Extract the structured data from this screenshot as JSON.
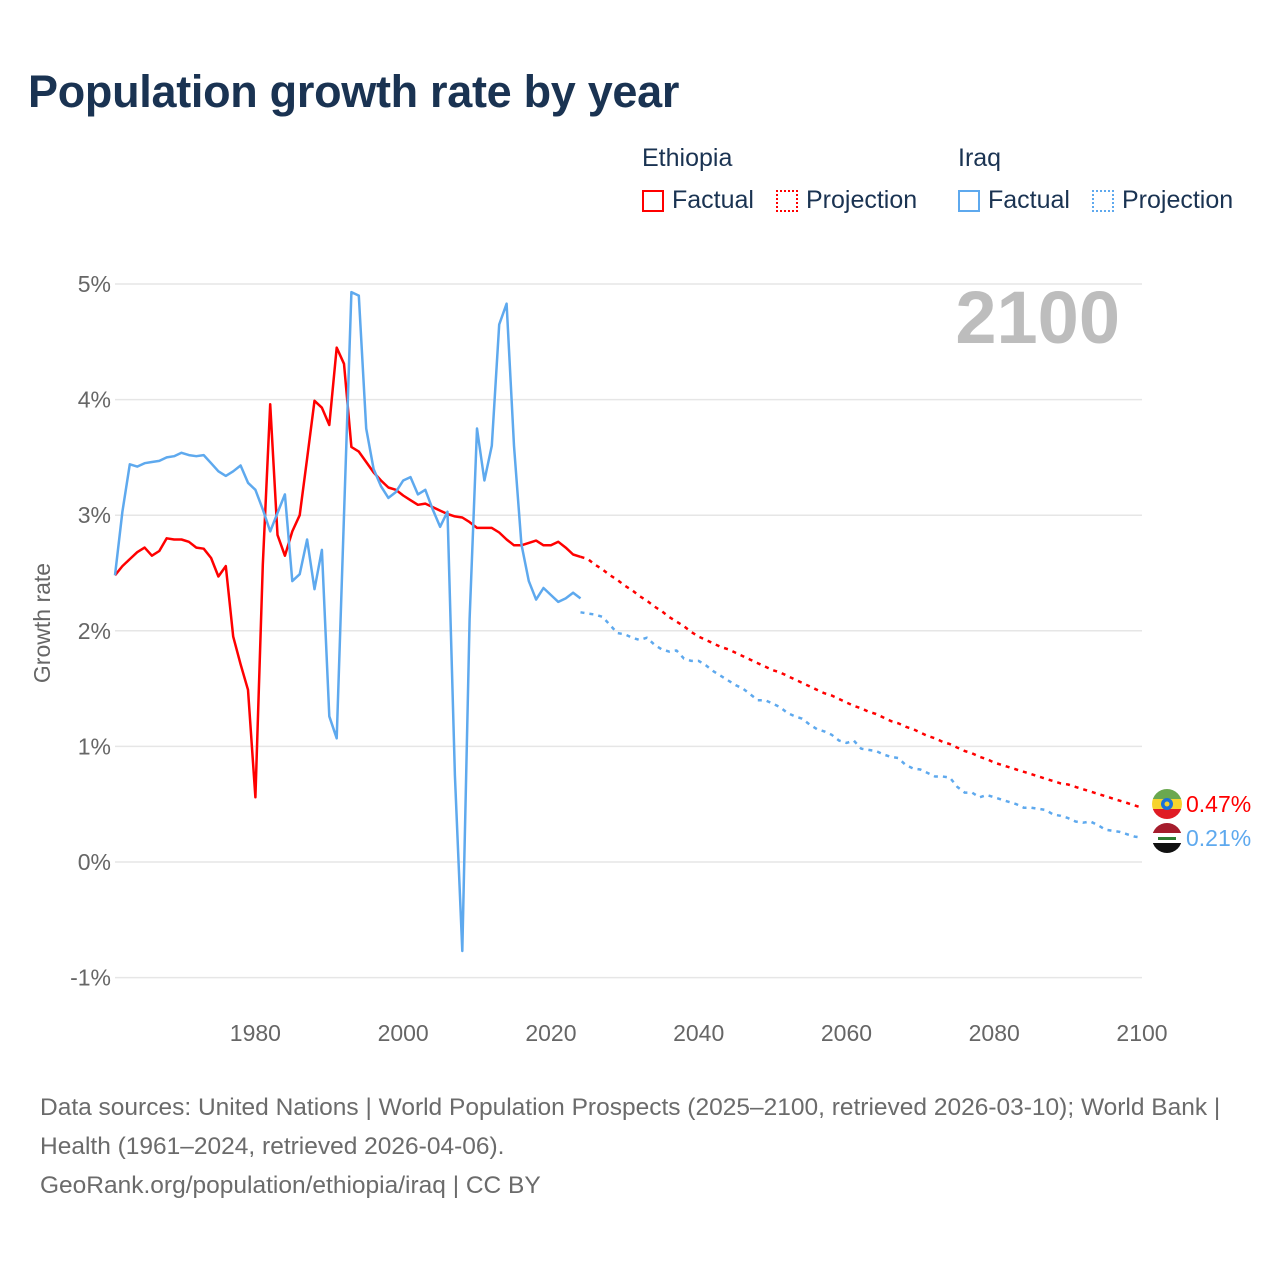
{
  "title": "Population growth rate by year",
  "legend": {
    "groups": [
      {
        "country": "Ethiopia",
        "factual": "Factual",
        "projection": "Projection",
        "color": "#ff0000"
      },
      {
        "country": "Iraq",
        "factual": "Factual",
        "projection": "Projection",
        "color": "#5ea9ee"
      }
    ]
  },
  "current_year_label": "2100",
  "end_labels": {
    "ethiopia": "0.47%",
    "iraq": "0.21%"
  },
  "footer": {
    "sources": "Data sources: United Nations | World Population Prospects (2025–2100, retrieved 2026-03-10); World Bank | Health (1961–2024, retrieved 2026-04-06).",
    "credit": "GeoRank.org/population/ethiopia/iraq | CC BY"
  },
  "chart_data": {
    "type": "line",
    "title": "Population growth rate by year",
    "xlabel": "",
    "ylabel": "Growth rate",
    "xlim": [
      1961,
      2100
    ],
    "ylim": [
      -1,
      5
    ],
    "x_ticks": [
      1980,
      2000,
      2020,
      2040,
      2060,
      2080,
      2100
    ],
    "x_tick_labels": [
      "1980",
      "2000",
      "2020",
      "2040",
      "2060",
      "2080",
      "2100"
    ],
    "y_ticks": [
      5,
      4,
      3,
      2,
      1,
      0,
      -1
    ],
    "y_tick_labels": [
      "5%",
      "4%",
      "3%",
      "2%",
      "1%",
      "0%",
      "-1%"
    ],
    "grid": true,
    "legend_placement": "top-right",
    "series": [
      {
        "name": "Ethiopia Factual",
        "color": "#ff0000",
        "style": "solid",
        "x_start": 1961,
        "values": [
          2.48,
          2.56,
          2.62,
          2.68,
          2.72,
          2.65,
          2.69,
          2.8,
          2.79,
          2.79,
          2.77,
          2.72,
          2.71,
          2.63,
          2.47,
          2.56,
          1.95,
          1.71,
          1.49,
          0.56,
          2.57,
          3.96,
          2.83,
          2.65,
          2.86,
          3.0,
          3.49,
          3.99,
          3.93,
          3.78,
          4.45,
          4.31,
          3.59,
          3.55,
          3.46,
          3.37,
          3.3,
          3.24,
          3.22,
          3.17,
          3.13,
          3.09,
          3.1,
          3.07,
          3.04,
          3.01,
          2.99,
          2.98,
          2.94,
          2.89,
          2.89,
          2.89,
          2.85,
          2.79,
          2.74,
          2.74,
          2.76,
          2.78,
          2.74,
          2.74,
          2.77,
          2.72,
          2.66,
          2.64
        ]
      },
      {
        "name": "Ethiopia Projection",
        "color": "#ff0000",
        "style": "dotted",
        "x_start": 2024,
        "values": [
          2.64,
          2.62,
          2.57,
          2.53,
          2.48,
          2.44,
          2.39,
          2.35,
          2.3,
          2.26,
          2.21,
          2.17,
          2.12,
          2.08,
          2.04,
          1.99,
          1.95,
          1.92,
          1.89,
          1.86,
          1.84,
          1.81,
          1.78,
          1.75,
          1.72,
          1.69,
          1.66,
          1.64,
          1.61,
          1.58,
          1.55,
          1.52,
          1.49,
          1.46,
          1.44,
          1.41,
          1.38,
          1.35,
          1.33,
          1.3,
          1.28,
          1.25,
          1.22,
          1.2,
          1.17,
          1.15,
          1.12,
          1.09,
          1.07,
          1.04,
          1.02,
          0.99,
          0.96,
          0.94,
          0.91,
          0.89,
          0.86,
          0.84,
          0.82,
          0.8,
          0.78,
          0.76,
          0.74,
          0.72,
          0.7,
          0.68,
          0.67,
          0.65,
          0.63,
          0.61,
          0.59,
          0.57,
          0.55,
          0.53,
          0.51,
          0.49,
          0.47
        ]
      },
      {
        "name": "Iraq Factual",
        "color": "#5ea9ee",
        "style": "solid",
        "x_start": 1961,
        "values": [
          2.48,
          3.03,
          3.44,
          3.42,
          3.45,
          3.46,
          3.47,
          3.5,
          3.51,
          3.54,
          3.52,
          3.51,
          3.52,
          3.45,
          3.38,
          3.34,
          3.38,
          3.43,
          3.28,
          3.22,
          3.05,
          2.86,
          3.02,
          3.18,
          2.43,
          2.49,
          2.79,
          2.36,
          2.7,
          1.26,
          1.07,
          3.0,
          4.93,
          4.9,
          3.75,
          3.4,
          3.25,
          3.15,
          3.2,
          3.3,
          3.33,
          3.18,
          3.22,
          3.05,
          2.9,
          3.03,
          0.75,
          -0.77,
          2.1,
          3.75,
          3.3,
          3.6,
          4.65,
          4.83,
          3.6,
          2.75,
          2.43,
          2.27,
          2.37,
          2.31,
          2.25,
          2.28,
          2.33,
          2.28
        ]
      },
      {
        "name": "Iraq Projection",
        "color": "#5ea9ee",
        "style": "dotted",
        "x_start": 2024,
        "values": [
          2.16,
          2.15,
          2.14,
          2.12,
          2.05,
          1.98,
          1.97,
          1.94,
          1.92,
          1.94,
          1.88,
          1.84,
          1.82,
          1.83,
          1.76,
          1.74,
          1.74,
          1.7,
          1.65,
          1.61,
          1.57,
          1.53,
          1.5,
          1.45,
          1.4,
          1.4,
          1.37,
          1.34,
          1.29,
          1.26,
          1.24,
          1.19,
          1.15,
          1.13,
          1.1,
          1.05,
          1.03,
          1.05,
          0.98,
          0.97,
          0.96,
          0.93,
          0.91,
          0.9,
          0.84,
          0.81,
          0.8,
          0.77,
          0.74,
          0.74,
          0.73,
          0.65,
          0.6,
          0.6,
          0.56,
          0.58,
          0.56,
          0.54,
          0.52,
          0.5,
          0.47,
          0.47,
          0.46,
          0.45,
          0.41,
          0.4,
          0.38,
          0.35,
          0.34,
          0.35,
          0.32,
          0.28,
          0.27,
          0.26,
          0.24,
          0.22,
          0.21
        ]
      }
    ]
  }
}
